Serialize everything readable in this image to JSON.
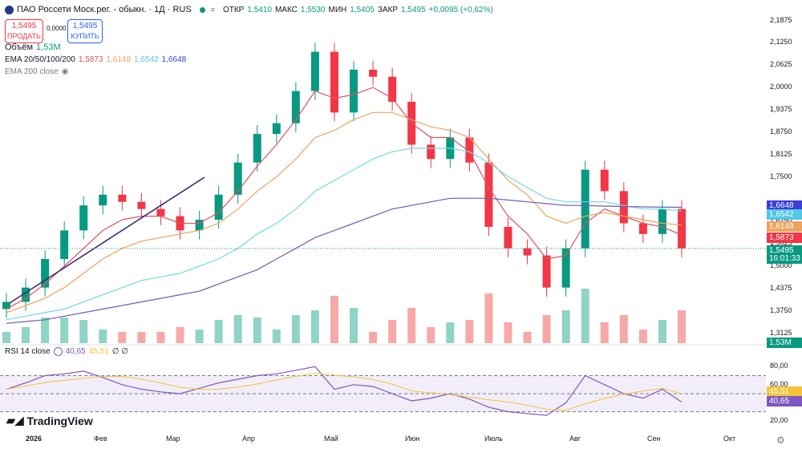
{
  "header": {
    "title": "ПАО Россети Моск.рег. - обыкн. · 1Д · RUS",
    "ohlc": [
      {
        "label": "ОТКР",
        "value": "1,5410"
      },
      {
        "label": "МАКС",
        "value": "1,5530"
      },
      {
        "label": "МИН",
        "value": "1,5405"
      },
      {
        "label": "ЗАКР",
        "value": "1,5495"
      }
    ],
    "change": "+0,0095 (+0,62%)",
    "sell_price": "1,5495",
    "sell_label": "ПРОДАТЬ",
    "spread": "0,0000",
    "buy_price": "1,5495",
    "buy_label": "КУПИТЬ"
  },
  "legend": {
    "volume_label": "Объём",
    "volume_value": "1,53M",
    "ema_label": "EMA 20/50/100/200",
    "ema_values": [
      "1,5873",
      "1,6148",
      "1,6542",
      "1,6648"
    ],
    "ema200_label": "EMA 200 close",
    "rsi_label": "RSI 14 close",
    "rsi_values": [
      "40,65",
      "45,51"
    ],
    "rsi_extra": "∅ ∅"
  },
  "colors": {
    "up": "#089981",
    "down": "#f23645",
    "ema20": "#e0525e",
    "ema50": "#f0a35e",
    "ema100": "#74d6e8",
    "ema200": "#6a5fb5",
    "rsi": "#7e57c2",
    "rsi_ma": "#f5c338",
    "trendline": "#3b2a7a"
  },
  "price_axis": {
    "ticks": [
      "2,1875",
      "2,1250",
      "2,0625",
      "2,0000",
      "1,9375",
      "1,8750",
      "1,8125",
      "1,7500",
      "1,6250",
      "1,5625",
      "1,5000",
      "1,4375",
      "1,3750",
      "1,3125"
    ],
    "tags": [
      {
        "text": "1,6648",
        "color": "#3a3fd6"
      },
      {
        "text": "1,6542",
        "color": "#52c7e6"
      },
      {
        "text": "1,6148",
        "color": "#f0a35e"
      },
      {
        "text": "1,5873",
        "color": "#f23645"
      },
      {
        "text": "1,5495",
        "color": "#089981"
      },
      {
        "text": "16:01:33",
        "color": "#089981"
      },
      {
        "text": "1,53M",
        "color": "#089981"
      }
    ]
  },
  "rsi_axis": {
    "ticks": [
      "80,00",
      "60,00",
      "20,00"
    ],
    "tags": [
      {
        "text": "45,51",
        "color": "#f5c338"
      },
      {
        "text": "40,65",
        "color": "#7e57c2"
      }
    ]
  },
  "time_axis": {
    "labels": [
      "2026",
      "Фев",
      "Мар",
      "Апр",
      "Май",
      "Июн",
      "Июль",
      "Авг",
      "Сен",
      "Окт"
    ]
  },
  "watermark": "TradingView",
  "chart_data": {
    "type": "line",
    "title": "ПАО Россети Моск.рег. - обыкн. · 1Д · RUS",
    "note_type": "candlestick with EMA 20/50/100/200, volume and RSI 14",
    "x": [
      "2026-01-05",
      "2026-01-12",
      "2026-01-19",
      "2026-01-26",
      "2026-02-02",
      "2026-02-09",
      "2026-02-16",
      "2026-02-23",
      "2026-03-02",
      "2026-03-09",
      "2026-03-16",
      "2026-03-23",
      "2026-03-30",
      "2026-04-06",
      "2026-04-13",
      "2026-04-20",
      "2026-04-27",
      "2026-05-04",
      "2026-05-11",
      "2026-05-18",
      "2026-05-25",
      "2026-06-01",
      "2026-06-08",
      "2026-06-15",
      "2026-06-22",
      "2026-06-29",
      "2026-07-06",
      "2026-07-13",
      "2026-07-20",
      "2026-07-27",
      "2026-08-03",
      "2026-08-10",
      "2026-08-17",
      "2026-08-24",
      "2026-08-31",
      "2026-09-07"
    ],
    "series": [
      {
        "name": "Close",
        "values": [
          1.4,
          1.44,
          1.52,
          1.6,
          1.67,
          1.7,
          1.68,
          1.66,
          1.64,
          1.6,
          1.63,
          1.7,
          1.79,
          1.87,
          1.9,
          1.99,
          2.1,
          1.93,
          2.05,
          2.03,
          1.96,
          1.84,
          1.8,
          1.86,
          1.79,
          1.61,
          1.55,
          1.53,
          1.44,
          1.55,
          1.77,
          1.71,
          1.62,
          1.59,
          1.66,
          1.55
        ]
      },
      {
        "name": "EMA 20",
        "values": [
          1.38,
          1.41,
          1.45,
          1.5,
          1.55,
          1.6,
          1.63,
          1.64,
          1.64,
          1.62,
          1.62,
          1.65,
          1.71,
          1.78,
          1.84,
          1.91,
          1.99,
          1.97,
          1.98,
          2.0,
          1.97,
          1.9,
          1.86,
          1.86,
          1.82,
          1.72,
          1.64,
          1.59,
          1.52,
          1.53,
          1.62,
          1.66,
          1.64,
          1.62,
          1.61,
          1.5873
        ]
      },
      {
        "name": "EMA 50",
        "values": [
          1.37,
          1.39,
          1.41,
          1.44,
          1.48,
          1.52,
          1.55,
          1.57,
          1.58,
          1.59,
          1.6,
          1.62,
          1.66,
          1.71,
          1.75,
          1.8,
          1.86,
          1.88,
          1.91,
          1.93,
          1.93,
          1.91,
          1.89,
          1.88,
          1.86,
          1.8,
          1.74,
          1.7,
          1.64,
          1.62,
          1.64,
          1.65,
          1.64,
          1.63,
          1.62,
          1.6148
        ]
      },
      {
        "name": "EMA 100",
        "values": [
          1.35,
          1.36,
          1.37,
          1.38,
          1.4,
          1.42,
          1.44,
          1.46,
          1.47,
          1.48,
          1.5,
          1.52,
          1.55,
          1.59,
          1.62,
          1.66,
          1.71,
          1.74,
          1.77,
          1.8,
          1.82,
          1.83,
          1.83,
          1.83,
          1.82,
          1.79,
          1.75,
          1.72,
          1.69,
          1.68,
          1.68,
          1.68,
          1.67,
          1.66,
          1.66,
          1.6542
        ]
      },
      {
        "name": "EMA 200",
        "values": [
          1.34,
          1.345,
          1.35,
          1.36,
          1.37,
          1.38,
          1.39,
          1.4,
          1.41,
          1.42,
          1.43,
          1.45,
          1.47,
          1.49,
          1.52,
          1.55,
          1.58,
          1.6,
          1.62,
          1.64,
          1.66,
          1.67,
          1.68,
          1.69,
          1.69,
          1.69,
          1.685,
          1.68,
          1.675,
          1.67,
          1.67,
          1.668,
          1.667,
          1.666,
          1.665,
          1.6648
        ]
      }
    ],
    "rsi": [
      55,
      62,
      70,
      72,
      75,
      68,
      60,
      55,
      52,
      50,
      56,
      62,
      66,
      70,
      72,
      76,
      80,
      55,
      60,
      58,
      50,
      42,
      45,
      50,
      44,
      35,
      30,
      28,
      26,
      40,
      70,
      60,
      50,
      45,
      55,
      40.65
    ],
    "ylim": [
      1.28,
      2.2
    ],
    "rsi_levels": [
      70,
      50,
      30
    ],
    "grid": false
  }
}
